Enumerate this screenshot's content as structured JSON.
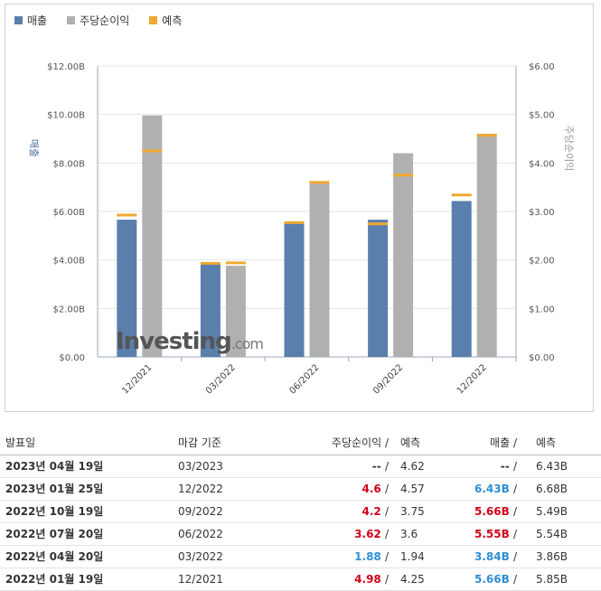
{
  "legend": [
    {
      "label": "매출",
      "color": "#5b7fad"
    },
    {
      "label": "주당순이익",
      "color": "#b0b0b0"
    },
    {
      "label": "예측",
      "color": "#f0a830"
    }
  ],
  "watermark": {
    "main": "Investing",
    "suffix": ".com"
  },
  "chart_data": {
    "type": "bar",
    "categories": [
      "12/2021",
      "03/2022",
      "06/2022",
      "09/2022",
      "12/2022"
    ],
    "left_axis": {
      "title": "매출",
      "ticks": [
        "$0.00",
        "$2.00B",
        "$4.00B",
        "$6.00B",
        "$8.00B",
        "$10.00B",
        "$12.00B"
      ],
      "ylim": [
        0,
        12
      ]
    },
    "right_axis": {
      "title": "주당순이익",
      "ticks": [
        "$0.00",
        "$1.00",
        "$2.00",
        "$3.00",
        "$4.00",
        "$5.00",
        "$6.00"
      ],
      "ylim": [
        0,
        6
      ]
    },
    "series": [
      {
        "name": "매출",
        "axis": "left",
        "values": [
          5.66,
          3.84,
          5.55,
          5.66,
          6.43
        ],
        "forecast": [
          5.85,
          3.86,
          5.54,
          5.49,
          6.68
        ]
      },
      {
        "name": "주당순이익",
        "axis": "right",
        "values": [
          4.98,
          1.88,
          3.62,
          4.2,
          4.6
        ],
        "forecast": [
          4.25,
          1.94,
          3.6,
          3.75,
          4.57
        ]
      }
    ],
    "colors": {
      "revenue": "#5b7fad",
      "eps": "#b0b0b0",
      "forecast": "#f0a830"
    },
    "grid": true
  },
  "table": {
    "headers": {
      "date": "발표일",
      "period": "마감 기준",
      "eps": "주당순이익",
      "eps_forecast": "예측",
      "revenue": "매출",
      "revenue_forecast": "예측"
    },
    "slash": "/",
    "rows": [
      {
        "date": "2023년 04월 19일",
        "period": "03/2023",
        "eps": "--",
        "eps_dir": "neutral",
        "eps_forecast": "4.62",
        "revenue": "--",
        "rev_dir": "neutral",
        "revenue_forecast": "6.43B"
      },
      {
        "date": "2023년 01월 25일",
        "period": "12/2022",
        "eps": "4.6",
        "eps_dir": "up",
        "eps_forecast": "4.57",
        "revenue": "6.43B",
        "rev_dir": "down",
        "revenue_forecast": "6.68B"
      },
      {
        "date": "2022년 10월 19일",
        "period": "09/2022",
        "eps": "4.2",
        "eps_dir": "up",
        "eps_forecast": "3.75",
        "revenue": "5.66B",
        "rev_dir": "up",
        "revenue_forecast": "5.49B"
      },
      {
        "date": "2022년 07월 20일",
        "period": "06/2022",
        "eps": "3.62",
        "eps_dir": "up",
        "eps_forecast": "3.6",
        "revenue": "5.55B",
        "rev_dir": "up",
        "revenue_forecast": "5.54B"
      },
      {
        "date": "2022년 04월 20일",
        "period": "03/2022",
        "eps": "1.88",
        "eps_dir": "down",
        "eps_forecast": "1.94",
        "revenue": "3.84B",
        "rev_dir": "down",
        "revenue_forecast": "3.86B"
      },
      {
        "date": "2022년 01월 19일",
        "period": "12/2021",
        "eps": "4.98",
        "eps_dir": "up",
        "eps_forecast": "4.25",
        "revenue": "5.66B",
        "rev_dir": "down",
        "revenue_forecast": "5.85B"
      }
    ]
  }
}
